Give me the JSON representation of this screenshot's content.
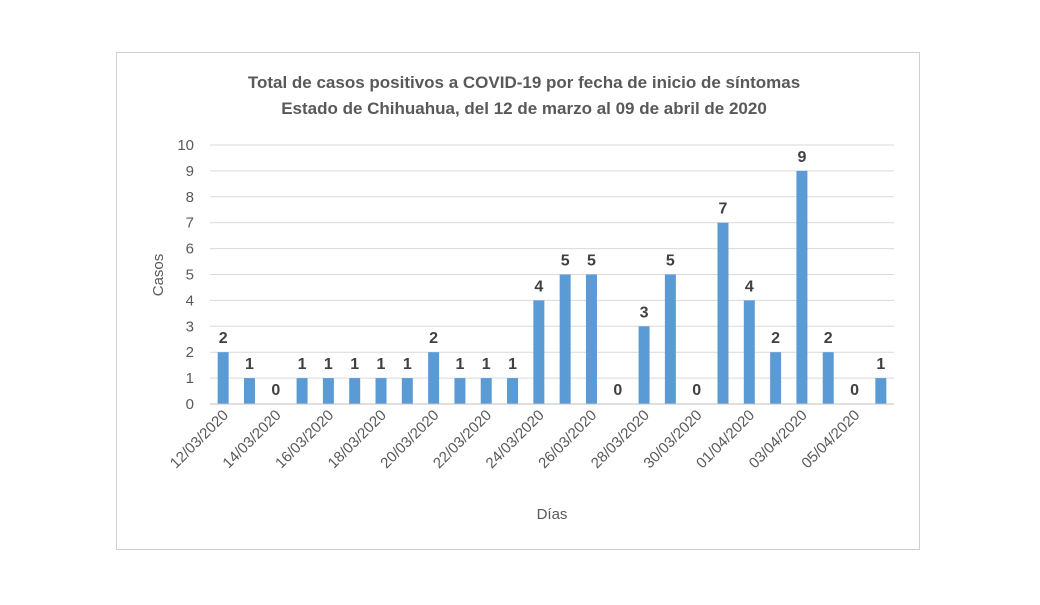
{
  "chart_data": {
    "type": "bar",
    "title": "Total de casos  positivos a COVID-19 por fecha de inicio de síntomas",
    "subtitle": "Estado de Chihuahua, del 12 de marzo al 09 de abril de 2020",
    "xlabel": "Días",
    "ylabel": "Casos",
    "ylim": [
      0,
      10
    ],
    "yticks": [
      0,
      1,
      2,
      3,
      4,
      5,
      6,
      7,
      8,
      9,
      10
    ],
    "grid": true,
    "legend": "none",
    "bar_color": "#5b9bd5",
    "categories": [
      "12/03/2020",
      "13/03/2020",
      "14/03/2020",
      "15/03/2020",
      "16/03/2020",
      "17/03/2020",
      "18/03/2020",
      "19/03/2020",
      "20/03/2020",
      "21/03/2020",
      "22/03/2020",
      "23/03/2020",
      "24/03/2020",
      "25/03/2020",
      "26/03/2020",
      "27/03/2020",
      "28/03/2020",
      "29/03/2020",
      "30/03/2020",
      "31/03/2020",
      "01/04/2020",
      "02/04/2020",
      "03/04/2020",
      "04/04/2020",
      "05/04/2020",
      "06/04/2020"
    ],
    "shown_tick_labels": [
      "12/03/2020",
      "14/03/2020",
      "16/03/2020",
      "18/03/2020",
      "20/03/2020",
      "22/03/2020",
      "24/03/2020",
      "26/03/2020",
      "28/03/2020",
      "30/03/2020",
      "01/04/2020",
      "03/04/2020",
      "05/04/2020"
    ],
    "values": [
      2,
      1,
      0,
      1,
      1,
      1,
      1,
      1,
      2,
      1,
      1,
      1,
      4,
      5,
      5,
      0,
      3,
      5,
      0,
      7,
      4,
      2,
      9,
      2,
      0,
      1
    ]
  }
}
